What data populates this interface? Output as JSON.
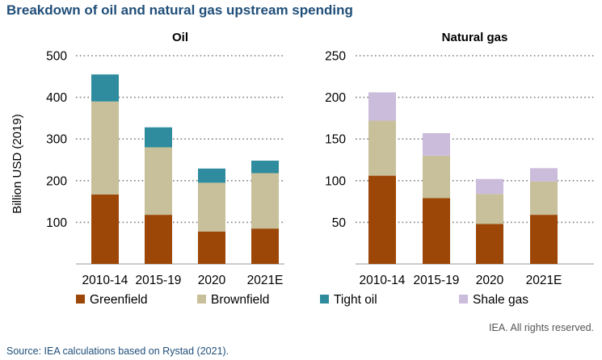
{
  "title": "Breakdown of oil and natural gas upstream spending",
  "rights": "IEA. All rights reserved.",
  "source": "Source: IEA calculations based on Rystad (2021).",
  "colors": {
    "Greenfield": "#9c4708",
    "Brownfield": "#c8c09a",
    "Tight oil": "#2f8c9e",
    "Shale gas": "#cbbcdc"
  },
  "legend": [
    "Greenfield",
    "Brownfield",
    "Tight oil",
    "Shale gas"
  ],
  "chart_data": [
    {
      "type": "bar",
      "stacked": true,
      "title": "Oil",
      "ylabel": "Billion USD (2019)",
      "categories": [
        "2010-14",
        "2015-19",
        "2020",
        "2021E"
      ],
      "ylim": [
        0,
        500
      ],
      "yticks": [
        100,
        200,
        300,
        400,
        500
      ],
      "series": [
        {
          "name": "Greenfield",
          "values": [
            167,
            118,
            78,
            85
          ]
        },
        {
          "name": "Brownfield",
          "values": [
            223,
            162,
            117,
            133
          ]
        },
        {
          "name": "Tight oil",
          "values": [
            65,
            48,
            34,
            30
          ]
        }
      ],
      "grid": true
    },
    {
      "type": "bar",
      "stacked": true,
      "title": "Natural gas",
      "ylabel": "",
      "categories": [
        "2010-14",
        "2015-19",
        "2020",
        "2021E"
      ],
      "ylim": [
        0,
        250
      ],
      "yticks": [
        50,
        100,
        150,
        200,
        250
      ],
      "series": [
        {
          "name": "Greenfield",
          "values": [
            106,
            79,
            48,
            59
          ]
        },
        {
          "name": "Brownfield",
          "values": [
            66,
            51,
            36,
            40
          ]
        },
        {
          "name": "Shale gas",
          "values": [
            34,
            27,
            18,
            16
          ]
        }
      ],
      "grid": true
    }
  ]
}
